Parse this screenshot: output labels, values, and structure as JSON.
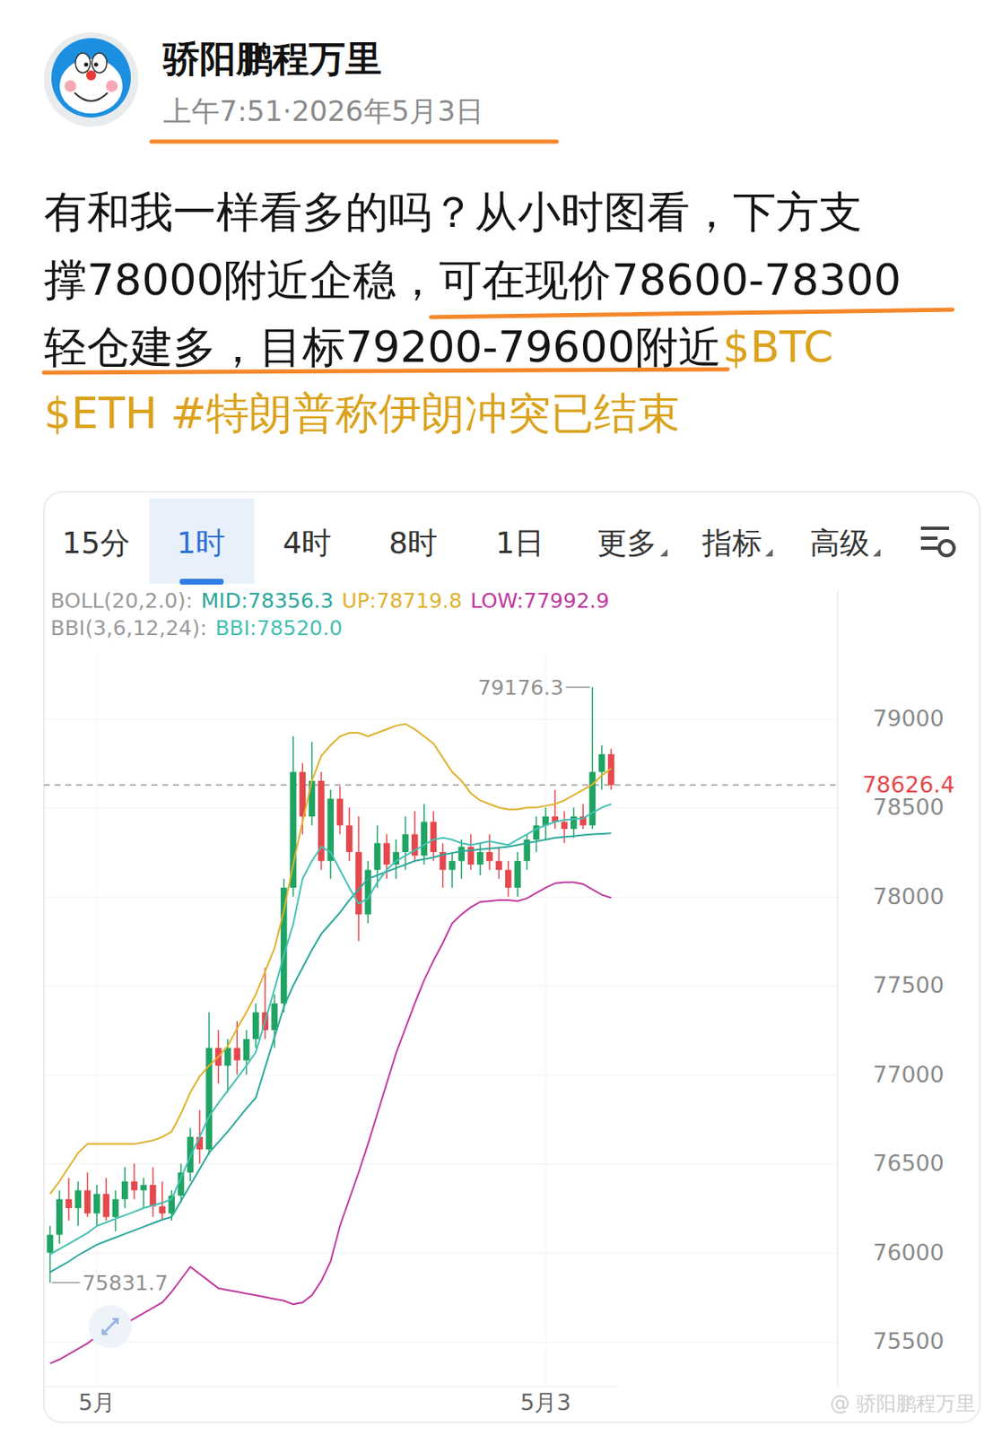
{
  "post": {
    "author": "骄阳鹏程万里",
    "time": "上午7:51·2026年5月3日",
    "body_lines": [
      "有和我一样看多的吗？从小时图看，下方支",
      "撑78000附近企稳，可在现价78600-78300",
      "轻仓建多，目标79200-79600附近"
    ],
    "tags": [
      "$BTC",
      "$ETH",
      "#特朗普称伊朗冲突已结束"
    ]
  },
  "tabs": [
    "15分",
    "1时",
    "4时",
    "8时",
    "1日",
    "更多",
    "指标",
    "高级"
  ],
  "active_tab": "1时",
  "watermark": "@ 骄阳鹏程万里",
  "chart_data": {
    "type": "candlestick",
    "categories": [
      null,
      null,
      null,
      null,
      null,
      "5月",
      null,
      null,
      null,
      null,
      null,
      null,
      null,
      null,
      null,
      null,
      null,
      null,
      null,
      null,
      null,
      null,
      null,
      null,
      null,
      null,
      null,
      null,
      null,
      null,
      null,
      null,
      null,
      null,
      null,
      null,
      null,
      null,
      null,
      null,
      null,
      null,
      null,
      null,
      null,
      null,
      null,
      null,
      null,
      null,
      null,
      null,
      null,
      "5月3",
      null,
      null,
      null,
      null,
      null,
      null,
      null
    ],
    "candles": {
      "open": [
        76000,
        76100,
        76300,
        76250,
        76350,
        76220,
        76330,
        76200,
        76300,
        76400,
        76350,
        76380,
        76260,
        76220,
        76320,
        76450,
        76650,
        76580,
        77150,
        77050,
        77150,
        77080,
        77200,
        77350,
        77250,
        77400,
        78050,
        78700,
        78450,
        78650,
        78200,
        78550,
        78400,
        78250,
        77900,
        78150,
        78300,
        78180,
        78250,
        78350,
        78230,
        78420,
        78250,
        78150,
        78200,
        78280,
        78180,
        78250,
        78200,
        78150,
        78050,
        78200,
        78320,
        78400,
        78450,
        78420,
        78380,
        78450,
        78400,
        78700,
        78800
      ],
      "high": [
        76150,
        76350,
        76420,
        76400,
        76450,
        76380,
        76420,
        76350,
        76480,
        76500,
        76420,
        76480,
        76400,
        76350,
        76500,
        76700,
        76800,
        77350,
        77250,
        77200,
        77300,
        77250,
        77400,
        77600,
        77450,
        78100,
        78900,
        78750,
        78870,
        78700,
        78600,
        78620,
        78500,
        78450,
        78200,
        78400,
        78350,
        78320,
        78450,
        78480,
        78520,
        78480,
        78300,
        78250,
        78320,
        78350,
        78300,
        78350,
        78280,
        78200,
        78250,
        78350,
        78450,
        78500,
        78600,
        78480,
        78500,
        78520,
        79176.3,
        78850,
        78830
      ],
      "low": [
        75831.7,
        76050,
        76180,
        76150,
        76200,
        76150,
        76180,
        76120,
        76250,
        76300,
        76250,
        76200,
        76180,
        76180,
        76280,
        76400,
        76500,
        76550,
        76950,
        76900,
        77000,
        77000,
        77150,
        77200,
        77150,
        77350,
        78000,
        78350,
        78400,
        78150,
        78100,
        78350,
        78200,
        77750,
        77850,
        78050,
        78100,
        78100,
        78150,
        78200,
        78180,
        78200,
        78050,
        78050,
        78100,
        78150,
        78120,
        78150,
        78100,
        78000,
        78000,
        78150,
        78250,
        78320,
        78380,
        78300,
        78330,
        78380,
        78380,
        78600,
        78600
      ],
      "close": [
        76100,
        76300,
        76250,
        76350,
        76220,
        76330,
        76200,
        76300,
        76400,
        76350,
        76380,
        76260,
        76220,
        76320,
        76450,
        76650,
        76580,
        77150,
        77050,
        77150,
        77080,
        77200,
        77350,
        77250,
        77400,
        78050,
        78700,
        78450,
        78650,
        78200,
        78550,
        78400,
        78250,
        77900,
        78150,
        78300,
        78180,
        78250,
        78350,
        78230,
        78420,
        78250,
        78150,
        78200,
        78280,
        78180,
        78250,
        78200,
        78150,
        78050,
        78200,
        78320,
        78400,
        78450,
        78420,
        78380,
        78450,
        78400,
        78700,
        78800,
        78626.4
      ]
    },
    "colors": [
      "#1fa463",
      "#1fa463",
      "#e5484d",
      "#1fa463",
      "#e5484d",
      "#1fa463",
      "#e5484d",
      "#1fa463",
      "#1fa463",
      "#e5484d",
      "#1fa463",
      "#e5484d",
      "#e5484d",
      "#1fa463",
      "#1fa463",
      "#1fa463",
      "#e5484d",
      "#1fa463",
      "#e5484d",
      "#1fa463",
      "#e5484d",
      "#1fa463",
      "#1fa463",
      "#e5484d",
      "#1fa463",
      "#1fa463",
      "#1fa463",
      "#e5484d",
      "#1fa463",
      "#e5484d",
      "#1fa463",
      "#e5484d",
      "#e5484d",
      "#e5484d",
      "#1fa463",
      "#1fa463",
      "#e5484d",
      "#1fa463",
      "#1fa463",
      "#e5484d",
      "#1fa463",
      "#e5484d",
      "#e5484d",
      "#1fa463",
      "#1fa463",
      "#e5484d",
      "#1fa463",
      "#e5484d",
      "#e5484d",
      "#e5484d",
      "#1fa463",
      "#1fa463",
      "#1fa463",
      "#1fa463",
      "#e5484d",
      "#e5484d",
      "#1fa463",
      "#e5484d",
      "#1fa463",
      "#1fa463",
      "#e5484d"
    ],
    "series": [
      {
        "name": "MID:78356.3",
        "group": "BOLL(20,2.0):",
        "type": "line",
        "color": "#2aa89a",
        "values": [
          75890,
          75920,
          75950,
          75985,
          76015,
          76045,
          76065,
          76085,
          76105,
          76125,
          76145,
          76165,
          76185,
          76200,
          76290,
          76380,
          76470,
          76560,
          76620,
          76680,
          76745,
          76810,
          76870,
          77040,
          77210,
          77380,
          77500,
          77600,
          77700,
          77790,
          77850,
          77910,
          77980,
          78040,
          78100,
          78120,
          78140,
          78160,
          78180,
          78200,
          78210,
          78220,
          78235,
          78245,
          78255,
          78260,
          78265,
          78270,
          78275,
          78280,
          78290,
          78300,
          78310,
          78320,
          78330,
          78335,
          78340,
          78345,
          78350,
          78353,
          78356.3
        ]
      },
      {
        "name": "UP:78719.8",
        "group": "BOLL(20,2.0):",
        "type": "line",
        "color": "#e0b12b",
        "values": [
          76330,
          76400,
          76480,
          76560,
          76610,
          76610,
          76610,
          76610,
          76610,
          76610,
          76620,
          76630,
          76650,
          76680,
          76780,
          76900,
          76990,
          77050,
          77100,
          77160,
          77260,
          77350,
          77450,
          77580,
          77710,
          77920,
          78180,
          78420,
          78650,
          78790,
          78850,
          78900,
          78920,
          78920,
          78900,
          78920,
          78940,
          78960,
          78970,
          78940,
          78900,
          78860,
          78780,
          78700,
          78650,
          78580,
          78540,
          78520,
          78500,
          78490,
          78490,
          78500,
          78500,
          78510,
          78520,
          78540,
          78570,
          78600,
          78630,
          78680,
          78719.8
        ]
      },
      {
        "name": "LOW:77992.9",
        "group": "BOLL(20,2.0):",
        "type": "line",
        "color": "#c0399f",
        "values": [
          75377,
          75400,
          75430,
          75460,
          75490,
          75530,
          75550,
          75570,
          75600,
          75630,
          75660,
          75690,
          75720,
          75780,
          75850,
          75920,
          75880,
          75840,
          75800,
          75790,
          75780,
          75770,
          75760,
          75750,
          75740,
          75730,
          75710,
          75720,
          75760,
          75840,
          75950,
          76150,
          76300,
          76450,
          76610,
          76780,
          76950,
          77120,
          77260,
          77400,
          77530,
          77640,
          77740,
          77850,
          77900,
          77940,
          77970,
          77975,
          77980,
          77980,
          77975,
          77990,
          78020,
          78050,
          78075,
          78080,
          78080,
          78070,
          78040,
          78010,
          77992.9
        ]
      },
      {
        "name": "BBI:78520.0",
        "group": "BBI(3,6,12,24):",
        "type": "line",
        "color": "#45c0b4",
        "values": [
          75990,
          76020,
          76050,
          76080,
          76110,
          76150,
          76170,
          76190,
          76210,
          76230,
          76250,
          76265,
          76280,
          76300,
          76420,
          76540,
          76650,
          76765,
          76840,
          76910,
          76980,
          77050,
          77125,
          77300,
          77480,
          77670,
          77845,
          78100,
          78200,
          78280,
          78250,
          78150,
          78050,
          77960,
          77990,
          78080,
          78150,
          78200,
          78230,
          78260,
          78290,
          78320,
          78330,
          78320,
          78300,
          78290,
          78300,
          78310,
          78300,
          78290,
          78320,
          78350,
          78380,
          78400,
          78420,
          78430,
          78435,
          78440,
          78470,
          78500,
          78520.0
        ]
      }
    ],
    "ylim": [
      75250,
      79720
    ],
    "yticks": [
      75500,
      76000,
      76500,
      77000,
      77500,
      78000,
      78500,
      79000
    ],
    "grid": true,
    "annotations": [
      {
        "text": "79176.3",
        "x": 58,
        "y": 79176.3
      },
      {
        "text": "75831.7",
        "x": 0,
        "y": 75831.7
      }
    ],
    "last_price": {
      "value": 78626.4,
      "label": "78626.4"
    }
  }
}
